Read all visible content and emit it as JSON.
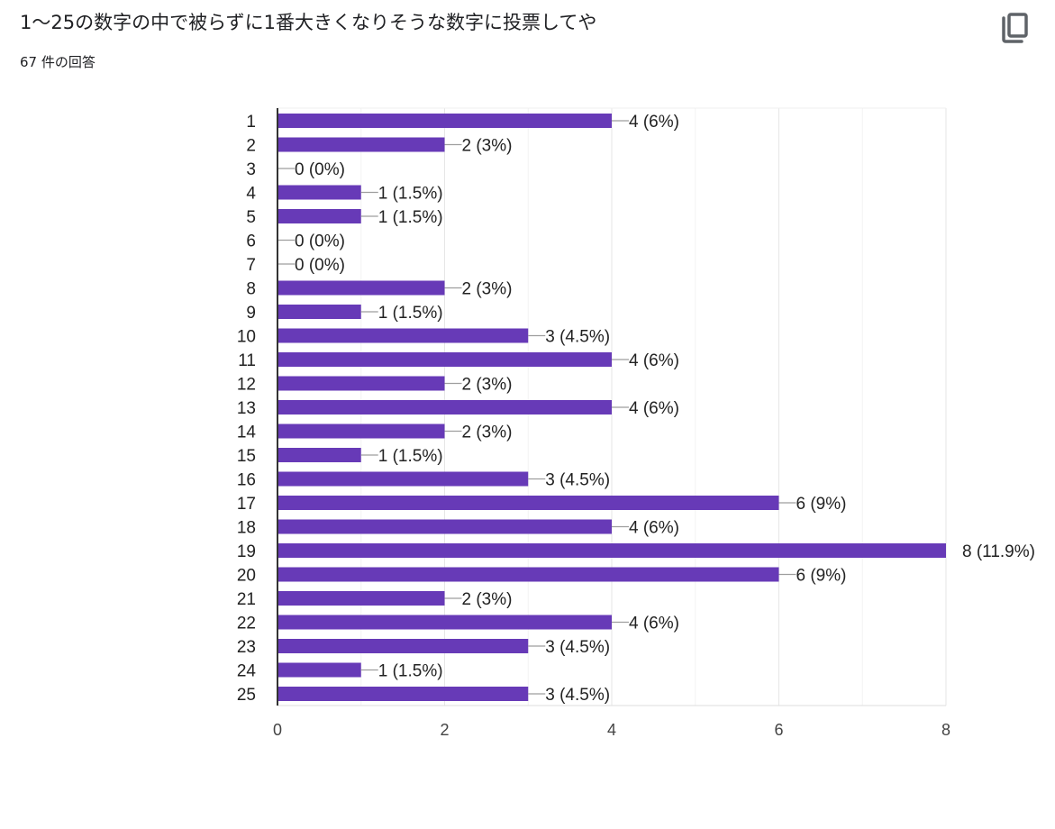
{
  "header": {
    "title": "1〜25の数字の中で被らずに1番大きくなりそうな数字に投票してや",
    "response_count": "67 件の回答",
    "copy_icon": "copy-icon"
  },
  "colors": {
    "bar": "#673ab7",
    "grid": "#e6e6e6",
    "axis": "#333333"
  },
  "chart_data": {
    "type": "bar",
    "orientation": "horizontal",
    "categories": [
      "1",
      "2",
      "3",
      "4",
      "5",
      "6",
      "7",
      "8",
      "9",
      "10",
      "11",
      "12",
      "13",
      "14",
      "15",
      "16",
      "17",
      "18",
      "19",
      "20",
      "21",
      "22",
      "23",
      "24",
      "25"
    ],
    "values": [
      4,
      2,
      0,
      1,
      1,
      0,
      0,
      2,
      1,
      3,
      4,
      2,
      4,
      2,
      1,
      3,
      6,
      4,
      8,
      6,
      2,
      4,
      3,
      1,
      3
    ],
    "value_labels": [
      "4 (6%)",
      "2 (3%)",
      "0 (0%)",
      "1 (1.5%)",
      "1 (1.5%)",
      "0 (0%)",
      "0 (0%)",
      "2 (3%)",
      "1 (1.5%)",
      "3 (4.5%)",
      "4 (6%)",
      "2 (3%)",
      "4 (6%)",
      "2 (3%)",
      "1 (1.5%)",
      "3 (4.5%)",
      "6 (9%)",
      "4 (6%)",
      "8 (11.9%)",
      "6 (9%)",
      "2 (3%)",
      "4 (6%)",
      "3 (4.5%)",
      "1 (1.5%)",
      "3 (4.5%)"
    ],
    "xlim": [
      0,
      8
    ],
    "xticks": [
      "0",
      "2",
      "4",
      "6",
      "8"
    ],
    "grid": true,
    "legend": "none"
  }
}
